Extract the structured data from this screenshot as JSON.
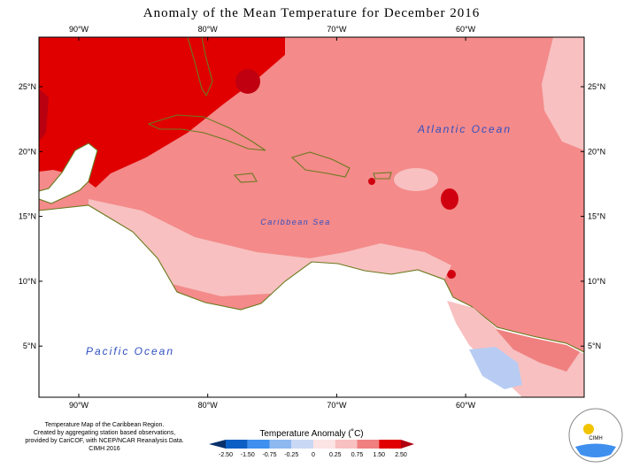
{
  "title": "Anomaly of the Mean Temperature for December 2016",
  "map": {
    "longitude_labels": [
      "90°W",
      "80°W",
      "70°W",
      "60°W"
    ],
    "latitude_labels": [
      "25°N",
      "20°N",
      "15°N",
      "10°N",
      "5°N"
    ],
    "ocean_labels": [
      "Atlantic Ocean",
      "Caribbean Sea",
      "Pacific Ocean"
    ]
  },
  "legend": {
    "title": "Temperature Anomaly (˚C)",
    "ticks": [
      "-2.50",
      "-1.50",
      "-0.75",
      "-0.25",
      "0",
      "0.25",
      "0.75",
      "1.50",
      "2.50"
    ],
    "colors": [
      "#08306b",
      "#0b5fc4",
      "#3f8fef",
      "#8db8f0",
      "#c9d8f5",
      "#fde4e4",
      "#f8c0c0",
      "#f08080",
      "#e00000",
      "#b00010"
    ]
  },
  "footer": [
    "Temperature Map of the Caribbean Region.",
    "Created by aggregating station based observations,",
    "provided by CariCOF, with NCEP/NCAR Reanalysis Data.",
    "CIMH 2016"
  ],
  "logo": "CIMH"
}
